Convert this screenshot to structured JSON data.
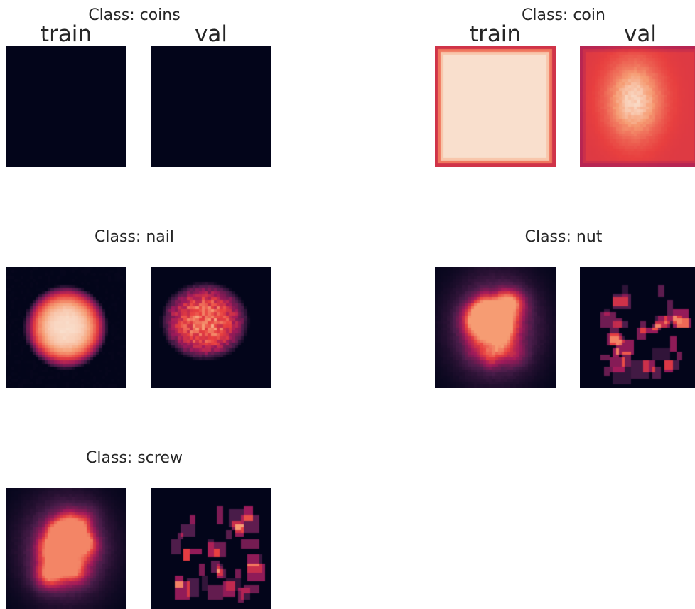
{
  "chart_data": {
    "type": "heatmap",
    "colormap": "rocket",
    "colormap_stops": [
      "#03051a",
      "#4c1d4b",
      "#a11a5b",
      "#e83f3f",
      "#f69c73",
      "#faebdd"
    ],
    "column_labels": [
      "train",
      "val"
    ],
    "panels": [
      {
        "title": "Class: coins",
        "show_column_labels": true,
        "train": {
          "pattern": "empty",
          "intensity": 0.0
        },
        "val": {
          "pattern": "empty",
          "intensity": 0.0
        }
      },
      {
        "title": "Class: coin",
        "show_column_labels": true,
        "train": {
          "pattern": "full-with-dark-border",
          "intensity": 0.97
        },
        "val": {
          "pattern": "central-blob-on-bright",
          "intensity": 0.92
        }
      },
      {
        "title": "Class: nail",
        "show_column_labels": false,
        "train": {
          "pattern": "smooth-central-blob",
          "intensity": 0.96
        },
        "val": {
          "pattern": "blocky-central-blob",
          "intensity": 0.85
        }
      },
      {
        "title": "Class: nut",
        "show_column_labels": false,
        "train": {
          "pattern": "noisy-blob",
          "intensity": 0.8
        },
        "val": {
          "pattern": "sparse-blocks",
          "intensity": 0.75
        }
      },
      {
        "title": "Class: screw",
        "show_column_labels": false,
        "train": {
          "pattern": "noisy-blob",
          "intensity": 0.75
        },
        "val": {
          "pattern": "sparse-blocks",
          "intensity": 0.8
        }
      }
    ]
  }
}
